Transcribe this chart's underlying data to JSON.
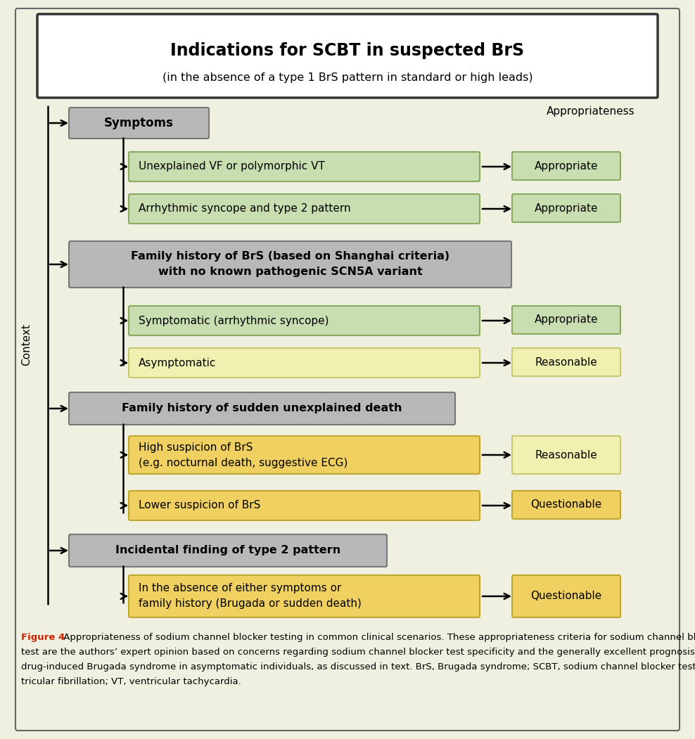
{
  "title_line1": "Indications for SCBT in suspected BrS",
  "title_line2": "(in the absence of a type 1 BrS pattern in standard or high leads)",
  "bg_color": "#f0f0e0",
  "context_label": "Context",
  "appropriateness_label": "Appropriateness",
  "fig4_label": "Figure 4",
  "fig4_color": "#cc2200",
  "figure_caption_rest": " Appropriateness of sodium channel blocker testing in common clinical scenarios. These appropriateness criteria for sodium channel blocker",
  "figure_caption_l2": "test are the authors’ expert opinion based on concerns regarding sodium channel blocker test specificity and the generally excellent prognosis of",
  "figure_caption_l3": "drug-induced Brugada syndrome in asymptomatic individuals, as discussed in text. BrS, Brugada syndrome; SCBT, sodium channel blocker test; VF, ven-",
  "figure_caption_l4": "tricular fibrillation; VT, ventricular tachycardia.",
  "gray_color": "#b8b8b8",
  "green_light": "#c8ddb0",
  "green_edge": "#8aaa60",
  "yellow_light": "#f0f0b0",
  "yellow_edge": "#c8c870",
  "gold_color": "#f0d060",
  "gold_edge": "#c0a830",
  "white": "#ffffff",
  "black": "#000000"
}
